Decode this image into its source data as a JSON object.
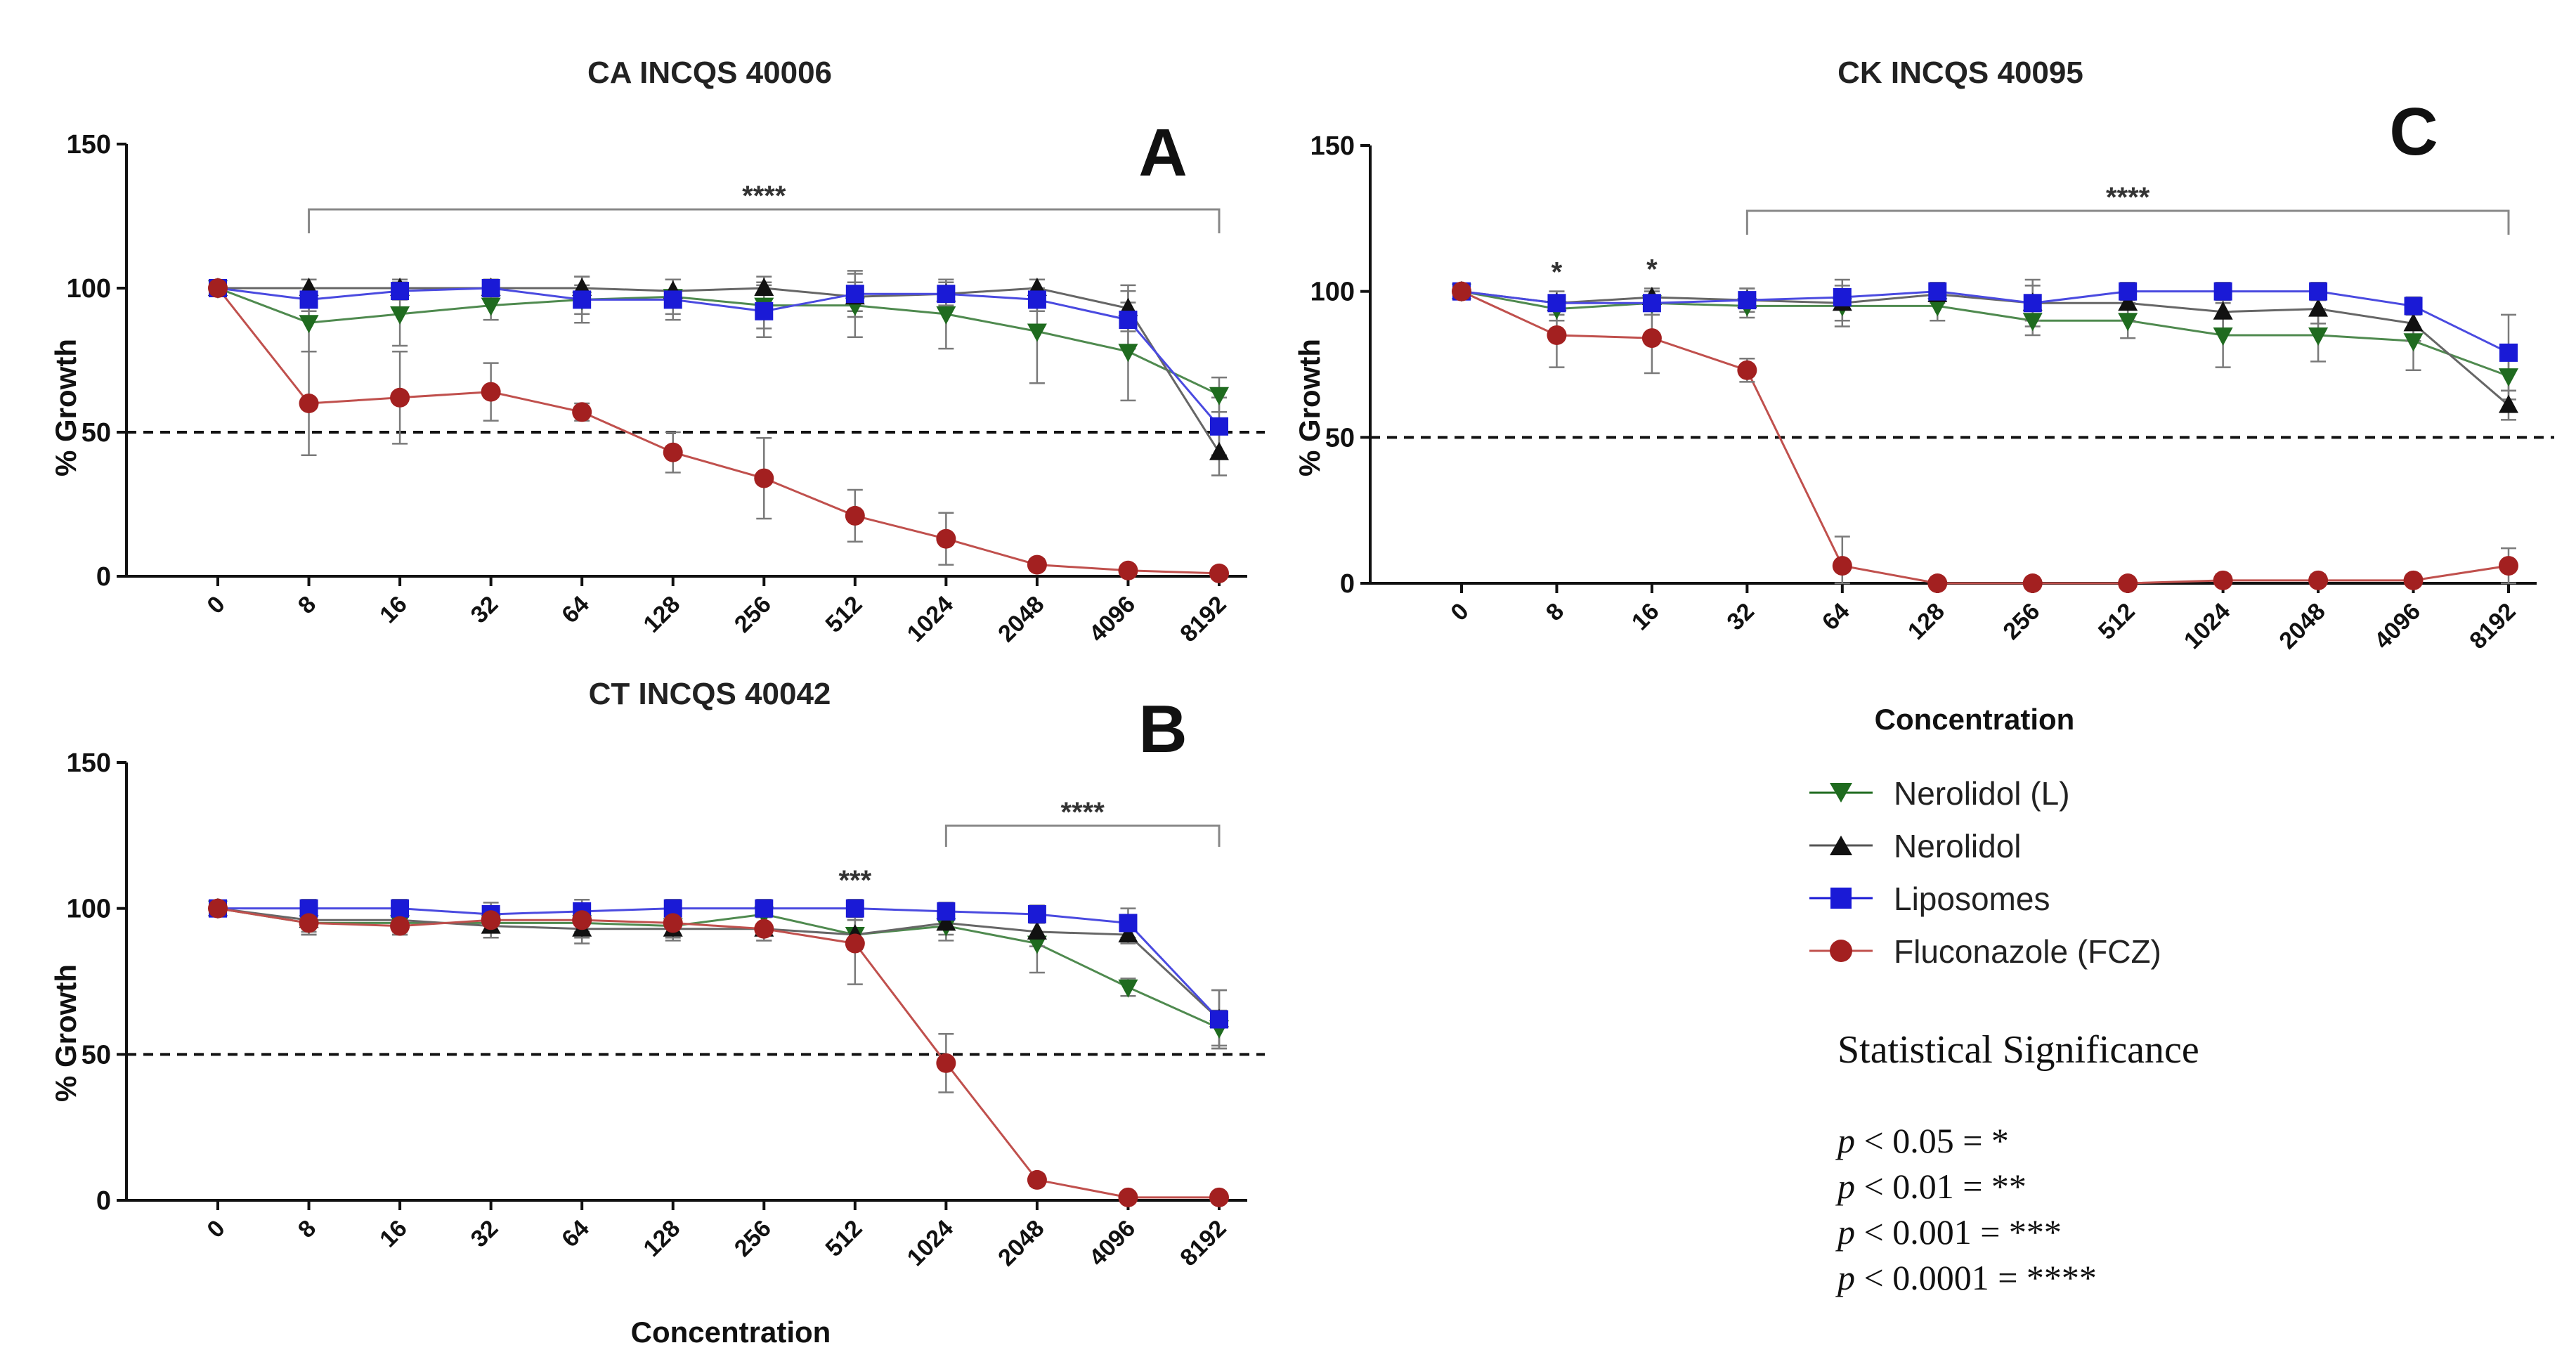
{
  "chart_data": [
    {
      "id": "A",
      "type": "line",
      "title": "CA INCQS 40006",
      "panel_label": "A",
      "xlabel": "",
      "ylabel": "% Growth",
      "ylim": [
        0,
        150
      ],
      "yticks": [
        "0",
        "50",
        "100",
        "150"
      ],
      "categories": [
        "0",
        "8",
        "16",
        "32",
        "64",
        "128",
        "256",
        "512",
        "1024",
        "2048",
        "4096",
        "8192"
      ],
      "reference_line": 50,
      "series": [
        {
          "name": "Nerolidol (L)",
          "values": [
            100,
            88,
            91,
            94,
            96,
            97,
            94,
            94,
            91,
            85,
            78,
            63
          ],
          "errors": [
            0,
            10,
            11,
            5,
            5,
            6,
            8,
            11,
            12,
            18,
            17,
            6
          ]
        },
        {
          "name": "Nerolidol",
          "values": [
            100,
            100,
            100,
            100,
            100,
            99,
            100,
            97,
            98,
            100,
            93,
            43
          ],
          "errors": [
            0,
            3,
            3,
            3,
            4,
            4,
            4,
            5,
            4,
            3,
            8,
            8
          ]
        },
        {
          "name": "Liposomes",
          "values": [
            100,
            96,
            99,
            100,
            96,
            96,
            92,
            98,
            98,
            96,
            89,
            52
          ],
          "errors": [
            0,
            4,
            3,
            3,
            8,
            7,
            9,
            8,
            5,
            4,
            10,
            10
          ]
        },
        {
          "name": "Fluconazole (FCZ)",
          "values": [
            100,
            60,
            62,
            64,
            57,
            43,
            34,
            21,
            13,
            4,
            2,
            1
          ],
          "errors": [
            0,
            18,
            16,
            10,
            3,
            7,
            14,
            9,
            9,
            2,
            1,
            1
          ]
        }
      ],
      "brackets": [
        {
          "from": "8",
          "to": "8192",
          "label": "****"
        }
      ],
      "annotations": []
    },
    {
      "id": "B",
      "type": "line",
      "title": "CT INCQS 40042",
      "panel_label": "B",
      "xlabel": "Concentration",
      "ylabel": "% Growth",
      "ylim": [
        0,
        150
      ],
      "yticks": [
        "0",
        "50",
        "100",
        "150"
      ],
      "categories": [
        "0",
        "8",
        "16",
        "32",
        "64",
        "128",
        "256",
        "512",
        "1024",
        "2048",
        "4096",
        "8192"
      ],
      "reference_line": 50,
      "series": [
        {
          "name": "Nerolidol (L)",
          "values": [
            100,
            95,
            95,
            95,
            95,
            94,
            98,
            91,
            94,
            88,
            73,
            59
          ],
          "errors": [
            0,
            4,
            4,
            5,
            5,
            4,
            4,
            5,
            5,
            10,
            3,
            6
          ]
        },
        {
          "name": "Nerolidol",
          "values": [
            100,
            96,
            96,
            94,
            93,
            93,
            93,
            91,
            95,
            92,
            91,
            62
          ],
          "errors": [
            0,
            5,
            4,
            4,
            5,
            4,
            4,
            5,
            4,
            5,
            3,
            10
          ]
        },
        {
          "name": "Liposomes",
          "values": [
            100,
            100,
            100,
            98,
            99,
            100,
            100,
            100,
            99,
            98,
            95,
            62
          ],
          "errors": [
            0,
            3,
            3,
            4,
            4,
            3,
            3,
            3,
            3,
            3,
            5,
            10
          ]
        },
        {
          "name": "Fluconazole (FCZ)",
          "values": [
            100,
            95,
            94,
            96,
            96,
            95,
            93,
            88,
            47,
            7,
            1,
            1
          ],
          "errors": [
            0,
            3,
            3,
            4,
            4,
            4,
            4,
            14,
            10,
            2,
            1,
            1
          ]
        }
      ],
      "brackets": [
        {
          "from": "1024",
          "to": "8192",
          "label": "****"
        }
      ],
      "annotations": [
        {
          "at": "512",
          "text": "***"
        }
      ]
    },
    {
      "id": "C",
      "type": "line",
      "title": "CK INCQS 40095",
      "panel_label": "C",
      "xlabel": "Concentration",
      "ylabel": "% Growth",
      "ylim": [
        0,
        150
      ],
      "yticks": [
        "0",
        "50",
        "100",
        "150"
      ],
      "categories": [
        "0",
        "8",
        "16",
        "32",
        "64",
        "128",
        "256",
        "512",
        "1024",
        "2048",
        "4096",
        "8192"
      ],
      "reference_line": 50,
      "series": [
        {
          "name": "Nerolidol (L)",
          "values": [
            100,
            94,
            96,
            95,
            95,
            95,
            90,
            90,
            85,
            85,
            83,
            71
          ],
          "errors": [
            0,
            4,
            4,
            4,
            5,
            5,
            5,
            6,
            11,
            9,
            10,
            8
          ]
        },
        {
          "name": "Nerolidol",
          "values": [
            100,
            96,
            98,
            97,
            96,
            99,
            96,
            96,
            93,
            94,
            89,
            61
          ],
          "errors": [
            0,
            4,
            3,
            4,
            8,
            3,
            6,
            6,
            6,
            5,
            6,
            5
          ]
        },
        {
          "name": "Liposomes",
          "values": [
            100,
            96,
            96,
            97,
            98,
            100,
            96,
            100,
            100,
            100,
            95,
            79
          ],
          "errors": [
            0,
            4,
            4,
            4,
            4,
            3,
            8,
            3,
            3,
            3,
            3,
            13
          ]
        },
        {
          "name": "Fluconazole (FCZ)",
          "values": [
            100,
            85,
            84,
            73,
            6,
            0,
            0,
            0,
            1,
            1,
            1,
            6
          ],
          "errors": [
            0,
            11,
            12,
            4,
            10,
            1,
            1,
            1,
            2,
            2,
            2,
            6
          ]
        }
      ],
      "brackets": [
        {
          "from": "32",
          "to": "8192",
          "label": "****"
        }
      ],
      "annotations": [
        {
          "at": "8",
          "text": "*"
        },
        {
          "at": "16",
          "text": "*"
        }
      ]
    }
  ],
  "legend": {
    "entries": [
      {
        "label": "Nerolidol (L)",
        "marker": "triangle-down",
        "color": "#1f6b1f"
      },
      {
        "label": "Nerolidol",
        "marker": "triangle-up",
        "color": "#111111"
      },
      {
        "label": "Liposomes",
        "marker": "square",
        "color": "#1a1ad6"
      },
      {
        "label": "Fluconazole (FCZ)",
        "marker": "circle",
        "color": "#a32020"
      }
    ]
  },
  "significance": {
    "title": "Statistical Significance",
    "lines": [
      {
        "p": "p",
        "rest": " < 0.05 = *"
      },
      {
        "p": "p",
        "rest": " < 0.01 = **"
      },
      {
        "p": "p",
        "rest": " < 0.001 = ***"
      },
      {
        "p": "p",
        "rest": " < 0.0001 = ****"
      }
    ]
  },
  "colors": {
    "nerolidol_l": "#1f6b1f",
    "nerolidol": "#111111",
    "liposomes": "#1a1ad6",
    "fluconazole": "#a32020",
    "fluconazole_line": "#c0504d"
  }
}
